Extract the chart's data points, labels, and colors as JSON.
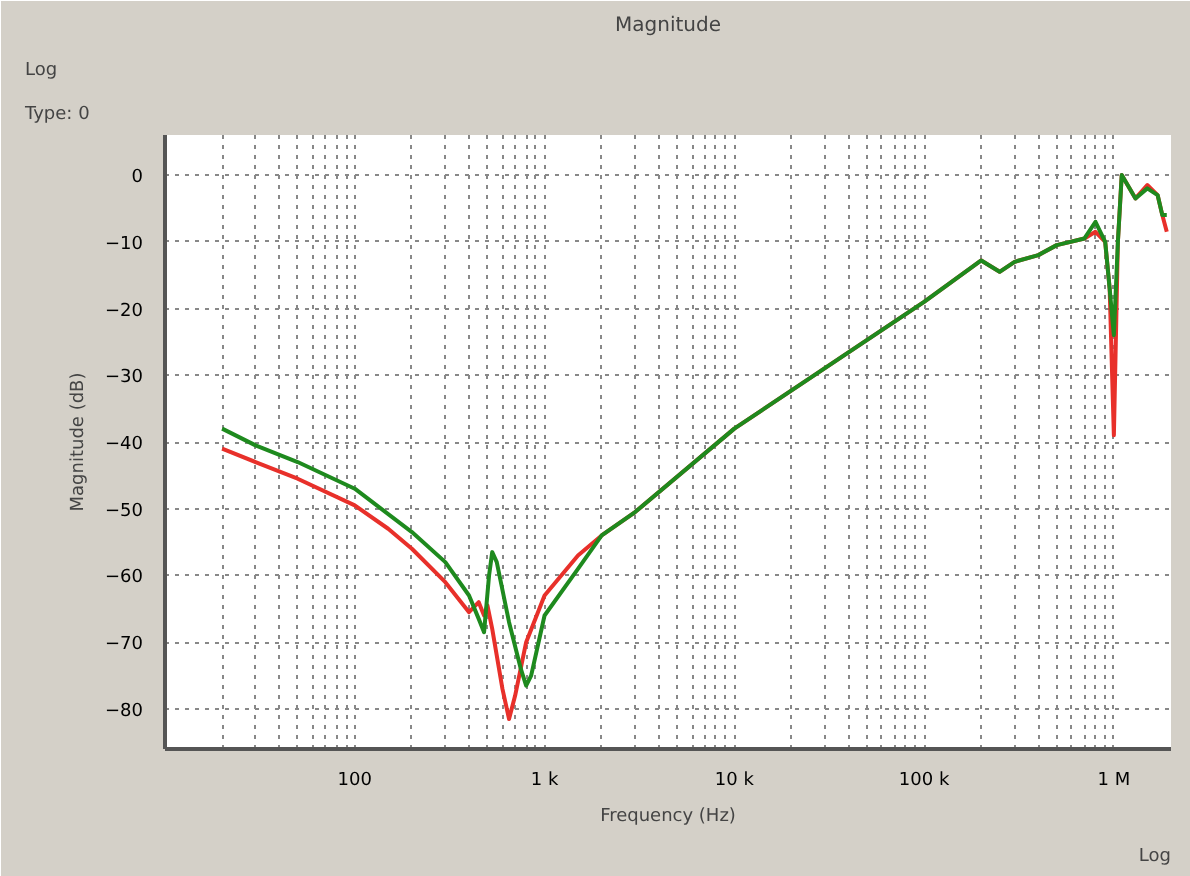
{
  "chart_data": {
    "type": "line",
    "title": "Magnitude",
    "xlabel": "Frequency (Hz)",
    "ylabel": "Magnitude (dB)",
    "annotations": [
      "Type: 0",
      "Log",
      "Log"
    ],
    "log": "x",
    "grid": true,
    "marker": "none",
    "line_style": "solid",
    "xlim": [
      10,
      2000000
    ],
    "ylim": [
      -86,
      6
    ],
    "xticks": [
      {
        "value": 100,
        "label": "100"
      },
      {
        "value": 1000,
        "label": "1 k"
      },
      {
        "value": 10000,
        "label": "10 k"
      },
      {
        "value": 100000,
        "label": "100 k"
      },
      {
        "value": 1000000,
        "label": "1 M"
      }
    ],
    "yticks": [
      0,
      -10,
      -20,
      -30,
      -40,
      -50,
      -60,
      -70,
      -80
    ],
    "series": [
      {
        "color": "#e8302a",
        "x": [
          20,
          30,
          50,
          100,
          150,
          200,
          300,
          400,
          450,
          480,
          500,
          530,
          600,
          650,
          700,
          800,
          1000,
          1500,
          2000,
          3000,
          10000,
          100000,
          200000,
          250000,
          300000,
          400000,
          500000,
          700000,
          800000,
          900000,
          950000,
          1000000,
          1050000,
          1100000,
          1300000,
          1500000,
          1700000,
          1800000,
          1900000
        ],
        "values": [
          -41,
          -43,
          -45.5,
          -49.5,
          -53,
          -56,
          -61,
          -65.5,
          -64,
          -66,
          -64.5,
          -68,
          -77,
          -81.5,
          -78,
          -70,
          -63,
          -57,
          -54,
          -50.5,
          -38,
          -19,
          -12.8,
          -14.5,
          -13,
          -12,
          -10.5,
          -9.5,
          -8.5,
          -10,
          -17,
          -39,
          -10,
          0,
          -3.5,
          -1.5,
          -3,
          -6,
          -8.5
        ]
      },
      {
        "color": "#1e8a1e",
        "x": [
          20,
          30,
          50,
          100,
          200,
          300,
          400,
          450,
          480,
          510,
          530,
          560,
          650,
          750,
          800,
          850,
          1000,
          1500,
          2000,
          3000,
          10000,
          100000,
          200000,
          250000,
          300000,
          400000,
          500000,
          700000,
          800000,
          900000,
          950000,
          1000000,
          1050000,
          1100000,
          1300000,
          1500000,
          1700000,
          1800000,
          1900000
        ],
        "values": [
          -38,
          -40.5,
          -43,
          -47,
          -53.5,
          -58,
          -63,
          -66.5,
          -68.5,
          -60,
          -56.5,
          -58,
          -67,
          -74,
          -76.5,
          -75,
          -66,
          -59,
          -54,
          -50.5,
          -38,
          -19,
          -12.8,
          -14.5,
          -13,
          -12,
          -10.5,
          -9.5,
          -7,
          -10,
          -17,
          -24,
          -10,
          0,
          -3.5,
          -2,
          -3,
          -6,
          -6
        ]
      }
    ]
  }
}
